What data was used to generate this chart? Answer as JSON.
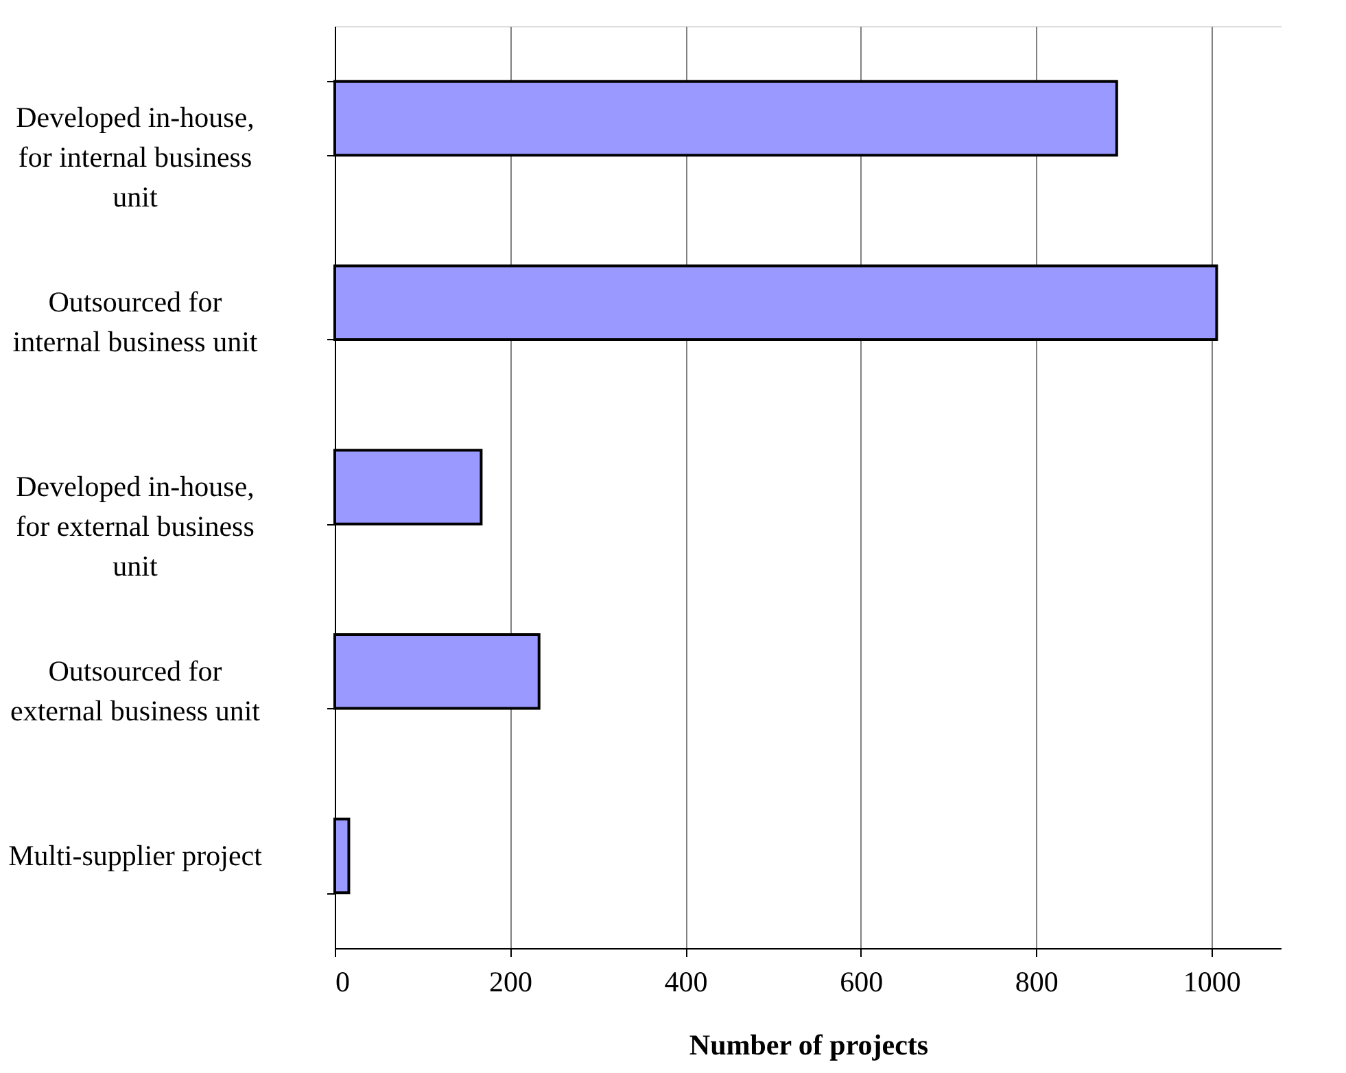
{
  "chart_data": {
    "type": "bar",
    "orientation": "horizontal",
    "xlabel": "Number of projects",
    "categories": [
      "Developed in-house, for internal business unit",
      "Outsourced for internal business unit",
      "Developed in-house, for external business unit",
      "Outsourced for external business unit",
      "Multi-supplier project"
    ],
    "values": [
      892,
      1006,
      167,
      233,
      16
    ],
    "color": "#9999ff",
    "xlim": [
      0,
      1080
    ],
    "xticks": [
      0,
      200,
      400,
      600,
      800,
      1000
    ],
    "grid": "x"
  }
}
